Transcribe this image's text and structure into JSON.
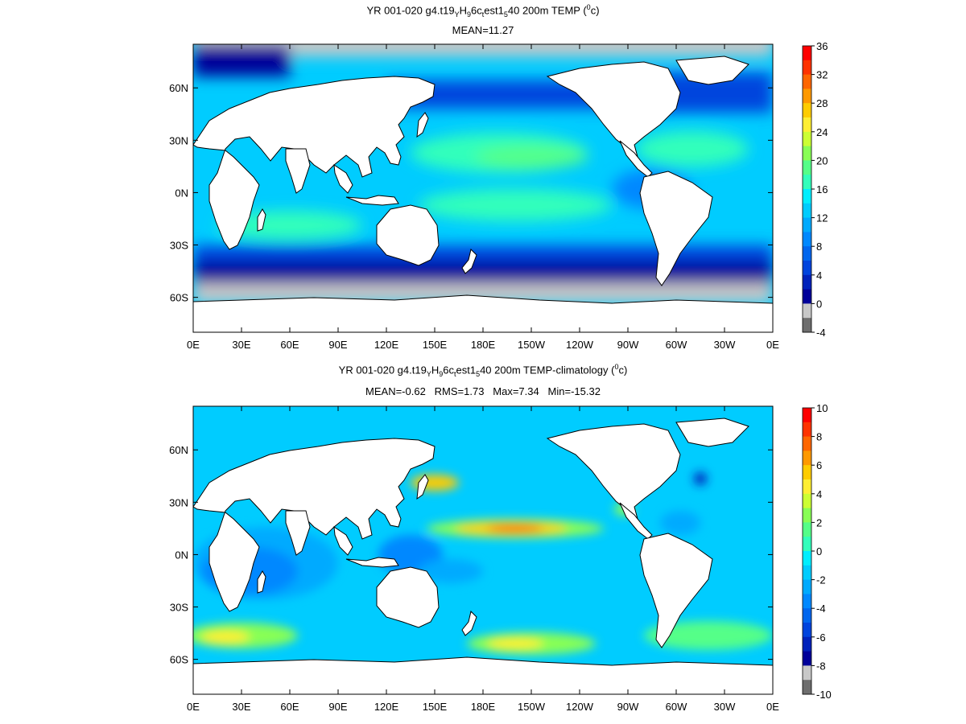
{
  "chart_data": [
    {
      "type": "heatmap",
      "title_parts": {
        "a": "YR 001-020 g4.t19",
        "b": "Y",
        "c": "H",
        "d": "9",
        "e": "6c",
        "f": "t",
        "g": "est1",
        "h": "5",
        "i": "40 200m TEMP (",
        "j": "0",
        "k": "c)"
      },
      "subtitle": "MEAN=11.27",
      "x_ticks": [
        "0E",
        "30E",
        "60E",
        "90E",
        "120E",
        "150E",
        "180E",
        "150W",
        "120W",
        "90W",
        "60W",
        "30W",
        "0E"
      ],
      "y_ticks": [
        "60N",
        "30N",
        "0N",
        "30S",
        "60S"
      ],
      "y_tick_values": [
        60,
        30,
        0,
        -30,
        -60
      ],
      "ylim": [
        -80,
        85
      ],
      "colorbar_labels": [
        "36",
        "32",
        "28",
        "24",
        "20",
        "16",
        "12",
        "8",
        "4",
        "0",
        "-4"
      ],
      "colorbar_colors": [
        "#ff0000",
        "#ff3300",
        "#ff6600",
        "#ff9900",
        "#ffcc00",
        "#ffee33",
        "#ccff33",
        "#88ff55",
        "#55ff88",
        "#33ffbb",
        "#00eeff",
        "#00ccff",
        "#00aaff",
        "#0088ff",
        "#0066ee",
        "#0044dd",
        "#0022bb",
        "#000099",
        "#c8c8c8",
        "#6e6e6e"
      ]
    },
    {
      "type": "heatmap",
      "title_parts": {
        "a": "YR 001-020 g4.t19",
        "b": "Y",
        "c": "H",
        "d": "9",
        "e": "6c",
        "f": "t",
        "g": "est1",
        "h": "5",
        "i": "40 200m TEMP-climatology (",
        "j": "0",
        "k": "c)"
      },
      "subtitle": "MEAN=-0.62   RMS=1.73   Max=7.34   Min=-15.32",
      "x_ticks": [
        "0E",
        "30E",
        "60E",
        "90E",
        "120E",
        "150E",
        "180E",
        "150W",
        "120W",
        "90W",
        "60W",
        "30W",
        "0E"
      ],
      "y_ticks": [
        "60N",
        "30N",
        "0N",
        "30S",
        "60S"
      ],
      "y_tick_values": [
        60,
        30,
        0,
        -30,
        -60
      ],
      "ylim": [
        -80,
        85
      ],
      "colorbar_labels": [
        "10",
        "8",
        "6",
        "4",
        "2",
        "0",
        "-2",
        "-4",
        "-6",
        "-8",
        "-10"
      ],
      "colorbar_colors": [
        "#ff0000",
        "#ff3300",
        "#ff6600",
        "#ff9900",
        "#ffcc00",
        "#ffee33",
        "#ccff33",
        "#88ff55",
        "#55ff88",
        "#33ffbb",
        "#00eeff",
        "#00ccff",
        "#00aaff",
        "#0088ff",
        "#0066ee",
        "#0044dd",
        "#0022bb",
        "#000099",
        "#c8c8c8",
        "#6e6e6e"
      ]
    }
  ],
  "colors": {
    "deep_blue": "#000099",
    "blue": "#0044dd",
    "mid_blue": "#0088ff",
    "cyan": "#00ccff",
    "light_cyan": "#33ffbb",
    "green": "#88ff55",
    "yellow": "#ffee33",
    "orange": "#ff9900",
    "red": "#ff0000",
    "ice_gray": "#c8c8c8",
    "land": "#ffffff",
    "coast": "#000000"
  }
}
